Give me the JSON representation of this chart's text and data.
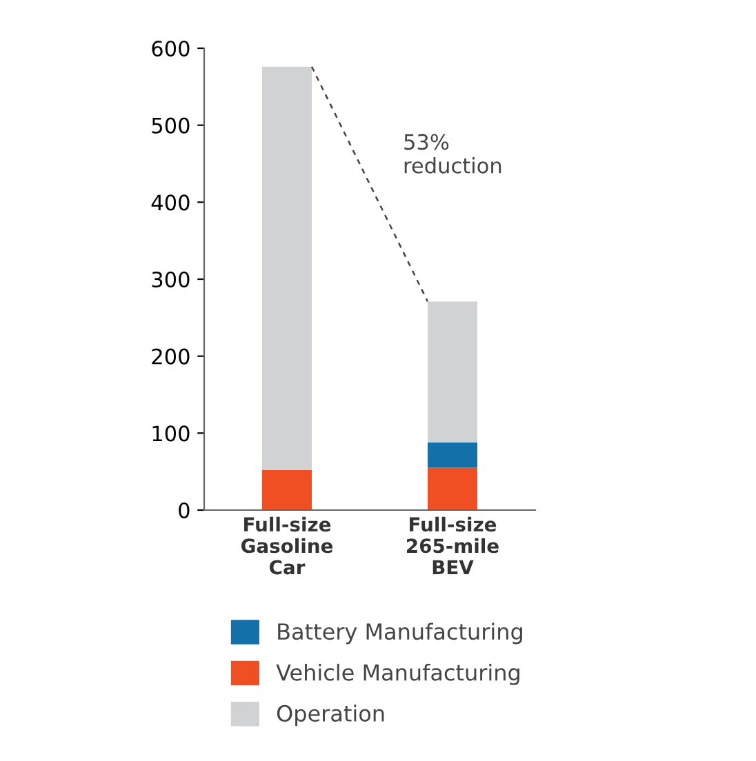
{
  "chart_data": {
    "type": "bar",
    "stacked": true,
    "categories": [
      "Full-size\nGasoline\nCar",
      "Full-size\n265-mile\nBEV"
    ],
    "series": [
      {
        "name": "Vehicle Manufacturing",
        "color": "#f04e23",
        "values": [
          52,
          55
        ]
      },
      {
        "name": "Battery Manufacturing",
        "color": "#1470a8",
        "values": [
          0,
          33
        ]
      },
      {
        "name": "Operation",
        "color": "#d0d2d3",
        "values": [
          524,
          183
        ]
      }
    ],
    "ylim": [
      0,
      600
    ],
    "yticks": [
      0,
      100,
      200,
      300,
      400,
      500,
      600
    ],
    "grid": false,
    "legend": "bottom",
    "annotations": [
      "53%\nreduction"
    ]
  }
}
